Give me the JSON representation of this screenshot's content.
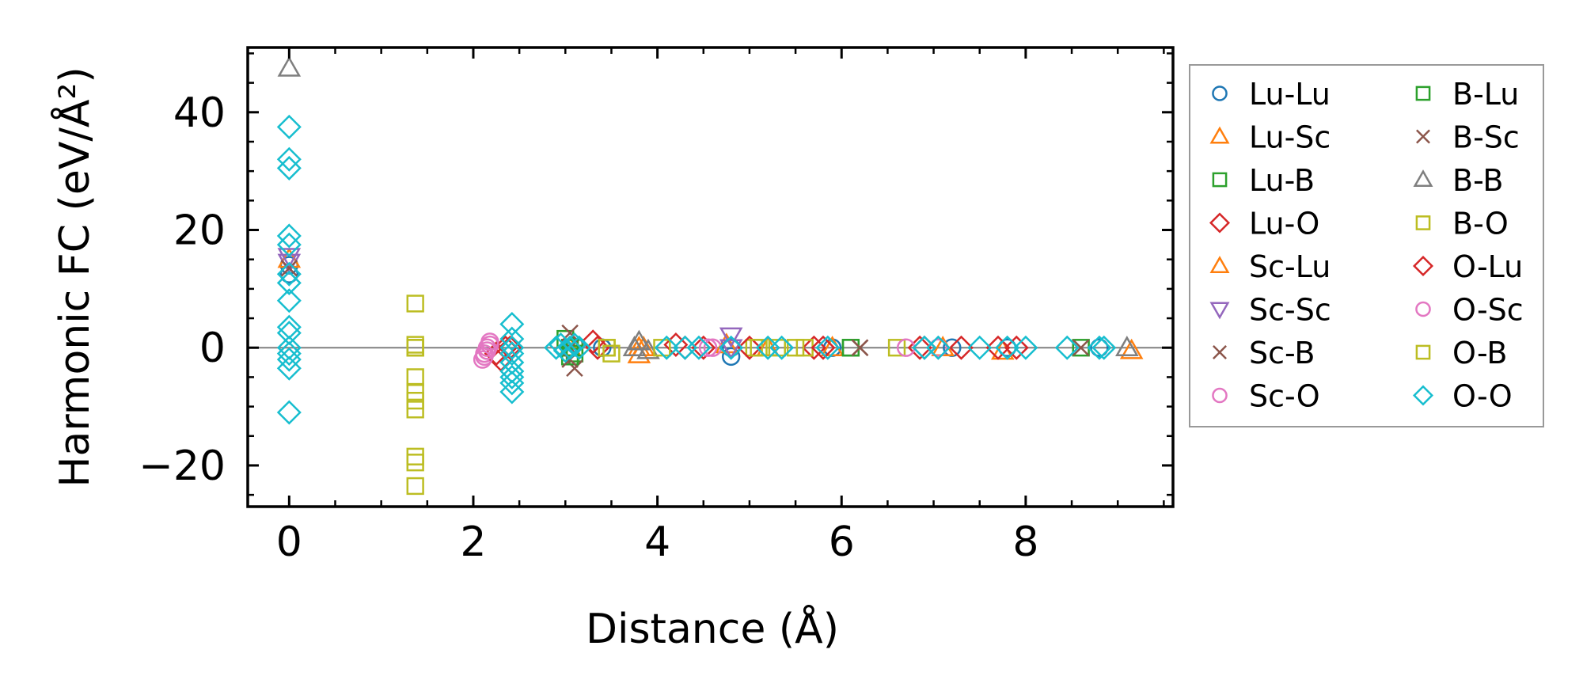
{
  "chart_data": {
    "type": "scatter",
    "title": "",
    "xlabel": "Distance (Å)",
    "ylabel": "Harmonic FC (eV/Å²)",
    "xlim": [
      -0.45,
      9.6
    ],
    "ylim": [
      -27,
      51
    ],
    "xticks": [
      0,
      2,
      4,
      6,
      8
    ],
    "xticklabels": [
      "0",
      "2",
      "4",
      "6",
      "8"
    ],
    "yticks": [
      -20,
      0,
      20,
      40
    ],
    "yticklabels": [
      "−20",
      "0",
      "20",
      "40"
    ],
    "grid": false,
    "zero_line": true,
    "legend_placement": "outside-right",
    "series": [
      {
        "name": "Lu-Lu",
        "marker": "circle",
        "filled": false,
        "color": "#1f77b4",
        "x": [
          0,
          0,
          3.05,
          3.4,
          4.8,
          4.8,
          5.9,
          7.2,
          7.8,
          8.8
        ],
        "y": [
          14,
          12.5,
          0,
          0,
          -1.5,
          0,
          0,
          0,
          0,
          0
        ]
      },
      {
        "name": "Lu-Sc",
        "marker": "triangle-up",
        "filled": false,
        "color": "#ff7f0e",
        "x": [
          0,
          3.05,
          3.8,
          3.85,
          5.9,
          7.75,
          9.15
        ],
        "y": [
          15,
          0,
          -1.2,
          0,
          0,
          -0.6,
          -0.5
        ]
      },
      {
        "name": "Lu-B",
        "marker": "square",
        "filled": false,
        "color": "#2ca02c",
        "x": [
          3.0,
          3.05,
          3.1,
          6.1,
          8.6
        ],
        "y": [
          1.5,
          0,
          -1,
          0,
          0
        ]
      },
      {
        "name": "Lu-O",
        "marker": "diamond",
        "filled": false,
        "color": "#d62728",
        "x": [
          2.25,
          2.35,
          3.35,
          4.2,
          4.5,
          5.7,
          6.9,
          7.7
        ],
        "y": [
          -1,
          0,
          0,
          0.5,
          0,
          0,
          0,
          0
        ]
      },
      {
        "name": "Sc-Lu",
        "marker": "triangle-up",
        "filled": false,
        "color": "#ff7f0e",
        "x": [
          3.8,
          4.75,
          5.2,
          7.1
        ],
        "y": [
          0,
          0.5,
          0,
          0
        ]
      },
      {
        "name": "Sc-Sc",
        "marker": "triangle-down",
        "filled": false,
        "color": "#9467bd",
        "x": [
          0,
          0,
          4.8,
          4.8
        ],
        "y": [
          15.5,
          14.5,
          2,
          0
        ]
      },
      {
        "name": "Sc-B",
        "marker": "x",
        "filled": false,
        "color": "#8c564b",
        "x": [
          0,
          3.05,
          3.1,
          3.05,
          6.2,
          8.6
        ],
        "y": [
          13.5,
          2.5,
          -3.5,
          0,
          0,
          0
        ]
      },
      {
        "name": "Sc-O",
        "marker": "circle",
        "filled": false,
        "color": "#e377c2",
        "x": [
          2.1,
          2.12,
          2.15,
          2.18,
          4.6,
          7.05
        ],
        "y": [
          -2,
          -1,
          0,
          1,
          0,
          0
        ]
      },
      {
        "name": "B-Lu",
        "marker": "square",
        "filled": false,
        "color": "#2ca02c",
        "x": [
          3.05,
          3.1,
          6.1
        ],
        "y": [
          -1.5,
          0,
          0
        ]
      },
      {
        "name": "B-Sc",
        "marker": "x",
        "filled": false,
        "color": "#8c564b",
        "x": [
          3.05,
          6.2
        ],
        "y": [
          -2,
          0
        ]
      },
      {
        "name": "B-B",
        "marker": "triangle-up",
        "filled": false,
        "color": "#7f7f7f",
        "x": [
          0,
          3.75,
          3.8,
          3.9,
          9.1
        ],
        "y": [
          47.5,
          0,
          1,
          -0.5,
          0
        ]
      },
      {
        "name": "B-O",
        "marker": "square",
        "filled": false,
        "color": "#bcbd22",
        "x": [
          1.37,
          1.37,
          1.37,
          1.37,
          1.37,
          1.37,
          1.37,
          1.37,
          1.37,
          1.37,
          1.37,
          3.45,
          4.05,
          5.05,
          5.6,
          6.6
        ],
        "y": [
          7.5,
          0.5,
          0,
          -5,
          -7.5,
          -9,
          -10.5,
          -18.5,
          -19.5,
          -23.5,
          0,
          0,
          0,
          0,
          0,
          0
        ]
      },
      {
        "name": "O-Lu",
        "marker": "diamond",
        "filled": false,
        "color": "#d62728",
        "x": [
          2.3,
          2.4,
          3.3,
          4.3,
          5.0,
          5.8,
          6.85,
          7.3,
          7.9
        ],
        "y": [
          -2,
          0,
          1,
          0,
          0,
          0,
          0,
          0,
          0
        ]
      },
      {
        "name": "O-Sc",
        "marker": "circle",
        "filled": false,
        "color": "#e377c2",
        "x": [
          2.12,
          2.15,
          2.18,
          4.55,
          6.7
        ],
        "y": [
          -1.5,
          -0.5,
          0.5,
          0,
          0
        ]
      },
      {
        "name": "O-B",
        "marker": "square",
        "filled": false,
        "color": "#bcbd22",
        "x": [
          1.37,
          3.45,
          3.5,
          5.1,
          5.3,
          5.5
        ],
        "y": [
          0,
          0,
          -1,
          0,
          0,
          0
        ]
      },
      {
        "name": "O-O",
        "marker": "diamond",
        "filled": false,
        "color": "#17becf",
        "x": [
          0,
          0,
          0,
          0,
          0,
          0,
          0,
          0,
          0,
          0,
          0,
          0,
          0,
          0,
          0,
          2.42,
          2.42,
          2.42,
          2.42,
          2.42,
          2.42,
          2.42,
          2.42,
          2.42,
          2.9,
          2.95,
          3.0,
          3.05,
          3.1,
          3.15,
          4.1,
          4.3,
          4.45,
          4.8,
          5.2,
          5.35,
          5.85,
          6.9,
          7.05,
          7.5,
          7.8,
          8.0,
          8.45,
          8.8,
          8.85
        ],
        "y": [
          37.5,
          32,
          30.5,
          19,
          17.5,
          12.5,
          11,
          8,
          3.5,
          2.5,
          0,
          -1,
          -2,
          -3.5,
          -11,
          4,
          1.5,
          0,
          -1,
          -2.5,
          -4,
          -5,
          -6,
          -7.5,
          0,
          0.5,
          -0.5,
          0,
          0.5,
          0,
          0,
          0,
          0,
          0,
          0,
          0,
          0,
          0,
          0,
          0,
          0,
          0,
          0,
          0,
          0
        ]
      }
    ]
  }
}
